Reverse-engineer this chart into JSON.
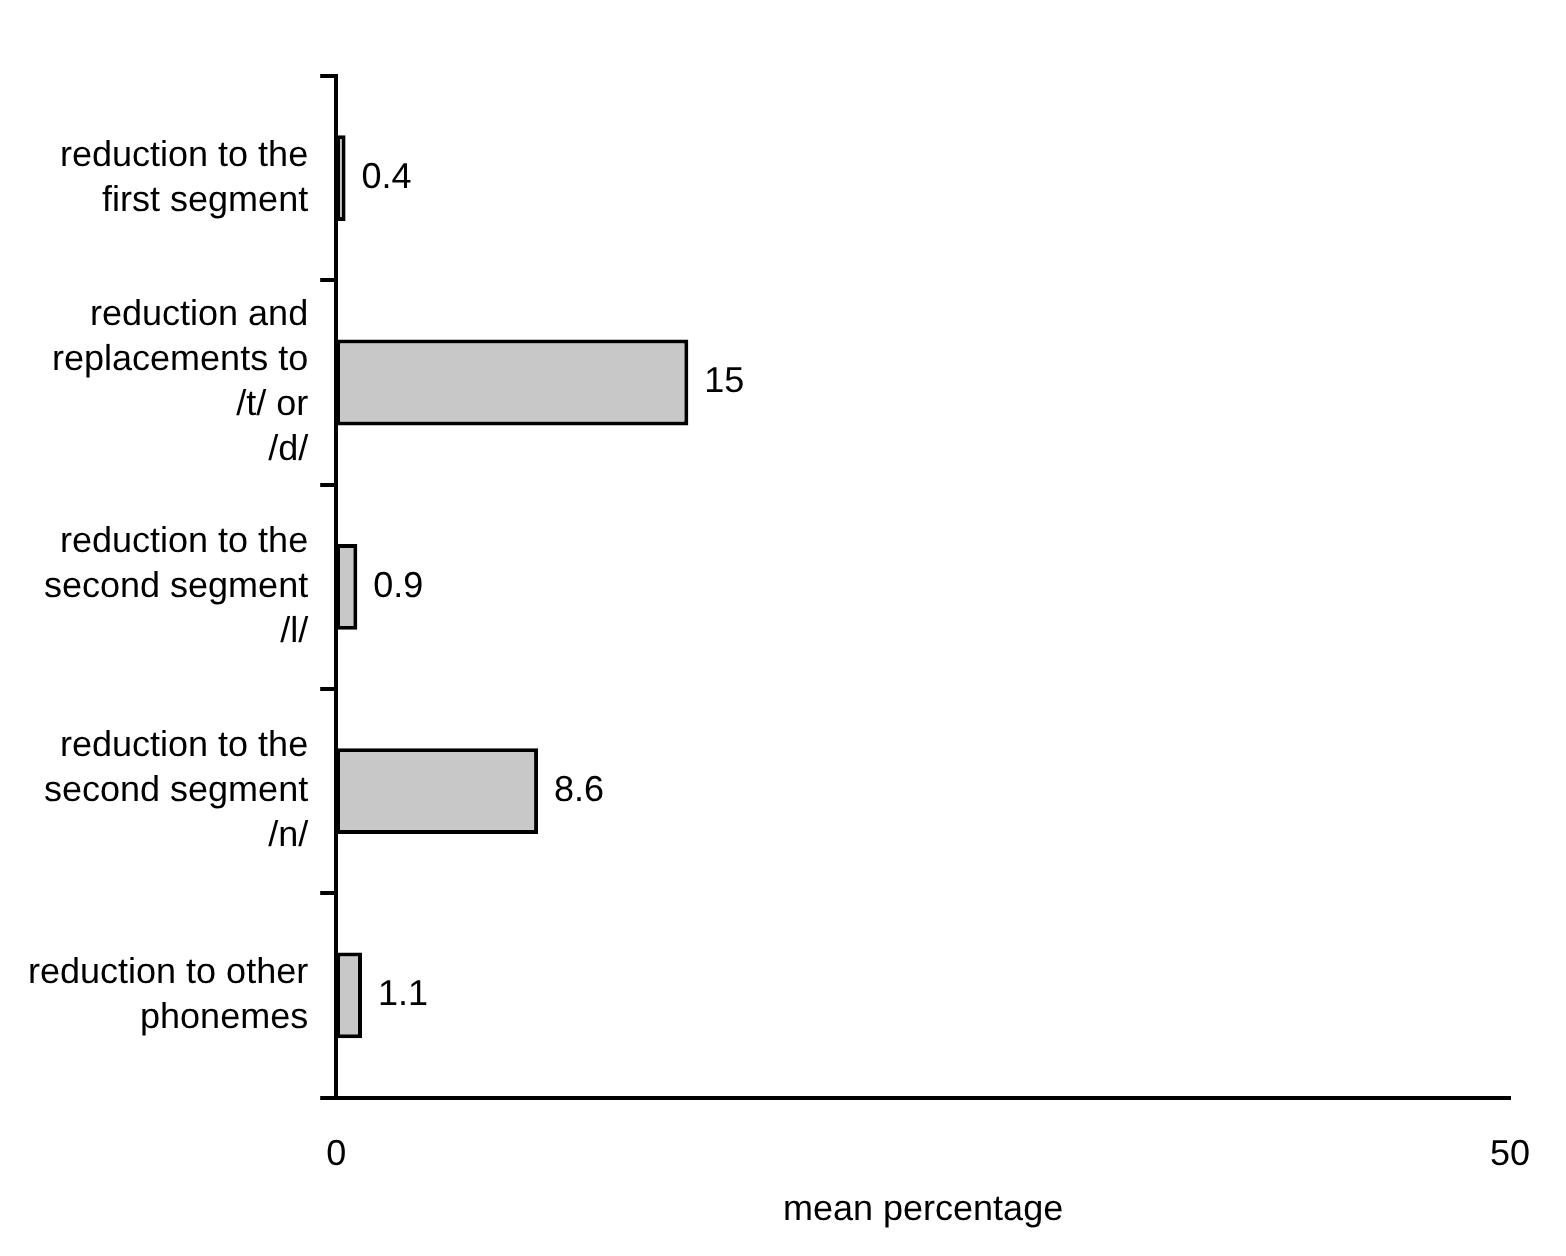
{
  "chart_data": {
    "type": "bar",
    "orientation": "horizontal",
    "xlabel": "mean percentage",
    "categories": [
      "reduction to the first segment",
      "reduction and replacements to /t/ or /d/",
      "reduction to the second segment /l/",
      "reduction to the second segment /n/",
      "reduction to other phonemes"
    ],
    "values": [
      0.4,
      15,
      0.9,
      8.6,
      1.1
    ],
    "color": "#c8c8c8",
    "xlim": [
      0,
      50
    ],
    "xticks": [
      0,
      50
    ],
    "data_labels": true,
    "grid": false,
    "legend": false
  }
}
